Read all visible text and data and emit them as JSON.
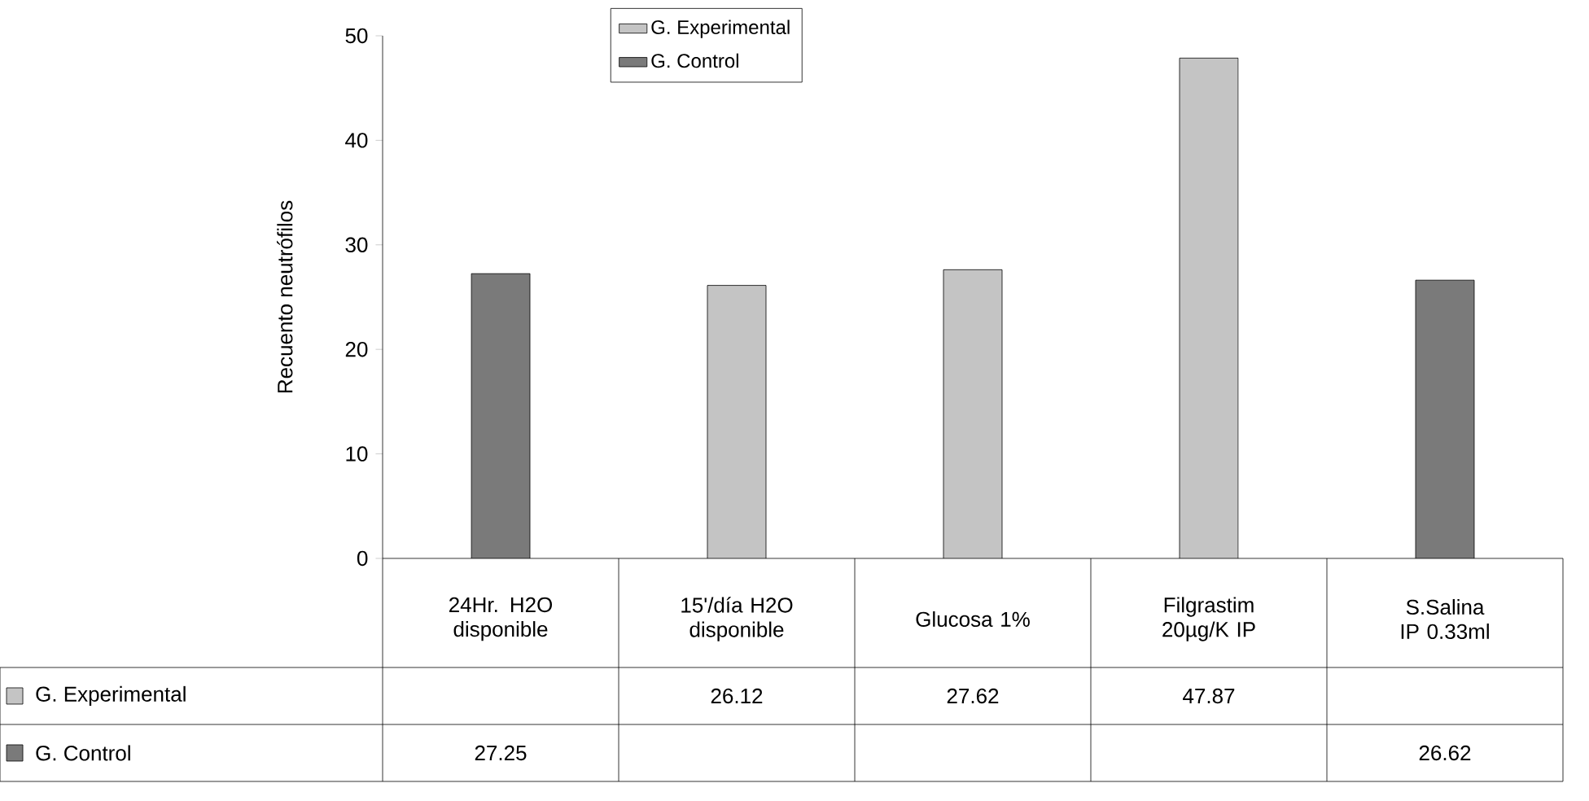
{
  "chart_data": {
    "type": "bar",
    "ylabel": "Recuento neutrófilos",
    "categories": [
      "24Hr. H2O disponible",
      "15'/día H2O disponible",
      "Glucosa 1%",
      "Filgrastim 20µg/K IP",
      "S.Salina IP 0.33ml"
    ],
    "series": [
      {
        "name": "G. Experimental",
        "color": "#c4c4c4",
        "values": [
          null,
          26.12,
          27.62,
          47.87,
          null
        ]
      },
      {
        "name": "G. Control",
        "color": "#7a7a7a",
        "values": [
          27.25,
          null,
          null,
          null,
          26.62
        ]
      }
    ],
    "ylim": [
      0,
      50
    ],
    "yticks": [
      0,
      10,
      20,
      30,
      40,
      50
    ],
    "legend": "top left",
    "data_labels": true
  }
}
